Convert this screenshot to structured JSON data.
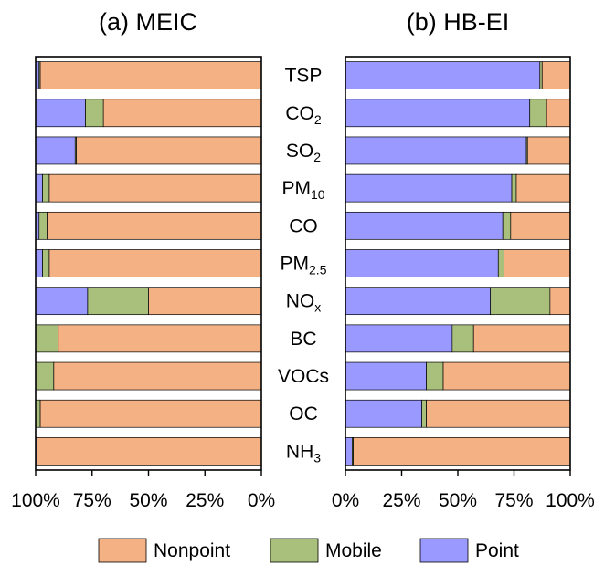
{
  "chart_data": {
    "type": "bar",
    "orientation": "horizontal",
    "stacked": true,
    "normalized_percent": true,
    "categories": [
      "TSP",
      "CO2",
      "SO2",
      "PM10",
      "CO",
      "PM2.5",
      "NOx",
      "BC",
      "VOCs",
      "OC",
      "NH3"
    ],
    "category_labels": [
      {
        "base": "TSP",
        "sub": ""
      },
      {
        "base": "CO",
        "sub": "2"
      },
      {
        "base": "SO",
        "sub": "2"
      },
      {
        "base": "PM",
        "sub": "10"
      },
      {
        "base": "CO",
        "sub": ""
      },
      {
        "base": "PM",
        "sub": "2.5"
      },
      {
        "base": "NO",
        "sub": "x"
      },
      {
        "base": "BC",
        "sub": ""
      },
      {
        "base": "VOCs",
        "sub": ""
      },
      {
        "base": "OC",
        "sub": ""
      },
      {
        "base": "NH",
        "sub": "3"
      }
    ],
    "series_colors": {
      "Nonpoint": "#f4b183",
      "Mobile": "#a9c07c",
      "Point": "#9999ff"
    },
    "legend": {
      "position": "bottom",
      "entries": [
        "Nonpoint",
        "Mobile",
        "Point"
      ]
    },
    "panels": [
      {
        "title": "(a) MEIC",
        "x_direction": "reversed",
        "xlim": [
          0,
          100
        ],
        "xticks": [
          "100%",
          "75%",
          "50%",
          "25%",
          "0%"
        ],
        "series": [
          {
            "name": "Nonpoint",
            "values": [
              98,
              70,
              82,
              94,
              95,
              94,
              50,
              90,
              92,
              98,
              99.5
            ]
          },
          {
            "name": "Mobile",
            "values": [
              0.5,
              8,
              0.5,
              3,
              3.5,
              3,
              27,
              10,
              8,
              2,
              0
            ]
          },
          {
            "name": "Point",
            "values": [
              1.5,
              22,
              17.5,
              3,
              1.5,
              3,
              23,
              0,
              0,
              0,
              0.5
            ]
          }
        ]
      },
      {
        "title": "(b) HB-EI",
        "x_direction": "normal",
        "xlim": [
          0,
          100
        ],
        "xticks": [
          "0%",
          "25%",
          "50%",
          "75%",
          "100%"
        ],
        "series": [
          {
            "name": "Point",
            "values": [
              86.5,
              82,
              80.5,
              74,
              70,
              68,
              64.5,
              47.5,
              36,
              34,
              3
            ]
          },
          {
            "name": "Mobile",
            "values": [
              1,
              7.5,
              0.5,
              2,
              3.5,
              2.5,
              26.5,
              9.5,
              7.5,
              2,
              0.5
            ]
          },
          {
            "name": "Nonpoint",
            "values": [
              12.5,
              10.5,
              19,
              24,
              26.5,
              29.5,
              9,
              43,
              56.5,
              64,
              96.5
            ]
          }
        ]
      }
    ]
  }
}
